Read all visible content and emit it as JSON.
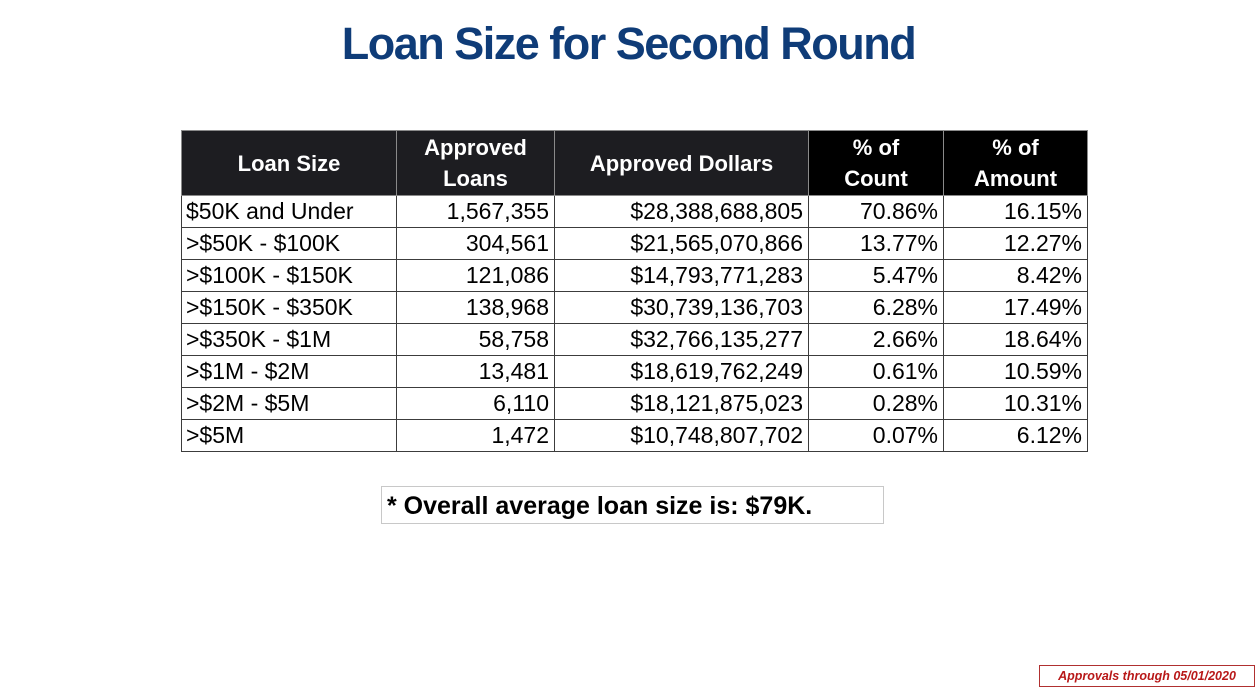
{
  "title": "Loan Size for Second Round",
  "table": {
    "headers": [
      {
        "line1": "Loan Size",
        "line2": ""
      },
      {
        "line1": "Approved",
        "line2": "Loans"
      },
      {
        "line1": "Approved Dollars",
        "line2": ""
      },
      {
        "line1": "% of",
        "line2": "Count"
      },
      {
        "line1": "% of",
        "line2": "Amount"
      }
    ],
    "rows": [
      {
        "size": "$50K and Under",
        "loans": "1,567,355",
        "dollars": "$28,388,688,805",
        "pct_count": "70.86%",
        "pct_amount": "16.15%"
      },
      {
        "size": ">$50K - $100K",
        "loans": "304,561",
        "dollars": "$21,565,070,866",
        "pct_count": "13.77%",
        "pct_amount": "12.27%"
      },
      {
        "size": ">$100K - $150K",
        "loans": "121,086",
        "dollars": "$14,793,771,283",
        "pct_count": "5.47%",
        "pct_amount": "8.42%"
      },
      {
        "size": ">$150K - $350K",
        "loans": "138,968",
        "dollars": "$30,739,136,703",
        "pct_count": "6.28%",
        "pct_amount": "17.49%"
      },
      {
        "size": ">$350K - $1M",
        "loans": "58,758",
        "dollars": "$32,766,135,277",
        "pct_count": "2.66%",
        "pct_amount": "18.64%"
      },
      {
        "size": ">$1M - $2M",
        "loans": "13,481",
        "dollars": "$18,619,762,249",
        "pct_count": "0.61%",
        "pct_amount": "10.59%"
      },
      {
        "size": ">$2M - $5M",
        "loans": "6,110",
        "dollars": "$18,121,875,023",
        "pct_count": "0.28%",
        "pct_amount": "10.31%"
      },
      {
        "size": ">$5M",
        "loans": "1,472",
        "dollars": "$10,748,807,702",
        "pct_count": "0.07%",
        "pct_amount": "6.12%"
      }
    ]
  },
  "note": "* Overall average loan size is: $79K.",
  "footnote": "Approvals through 05/01/2020",
  "colors": {
    "title": "#0f3c78",
    "header_bg": "#1d1d21",
    "header_bg_dark": "#000000",
    "footnote": "#b81818"
  }
}
